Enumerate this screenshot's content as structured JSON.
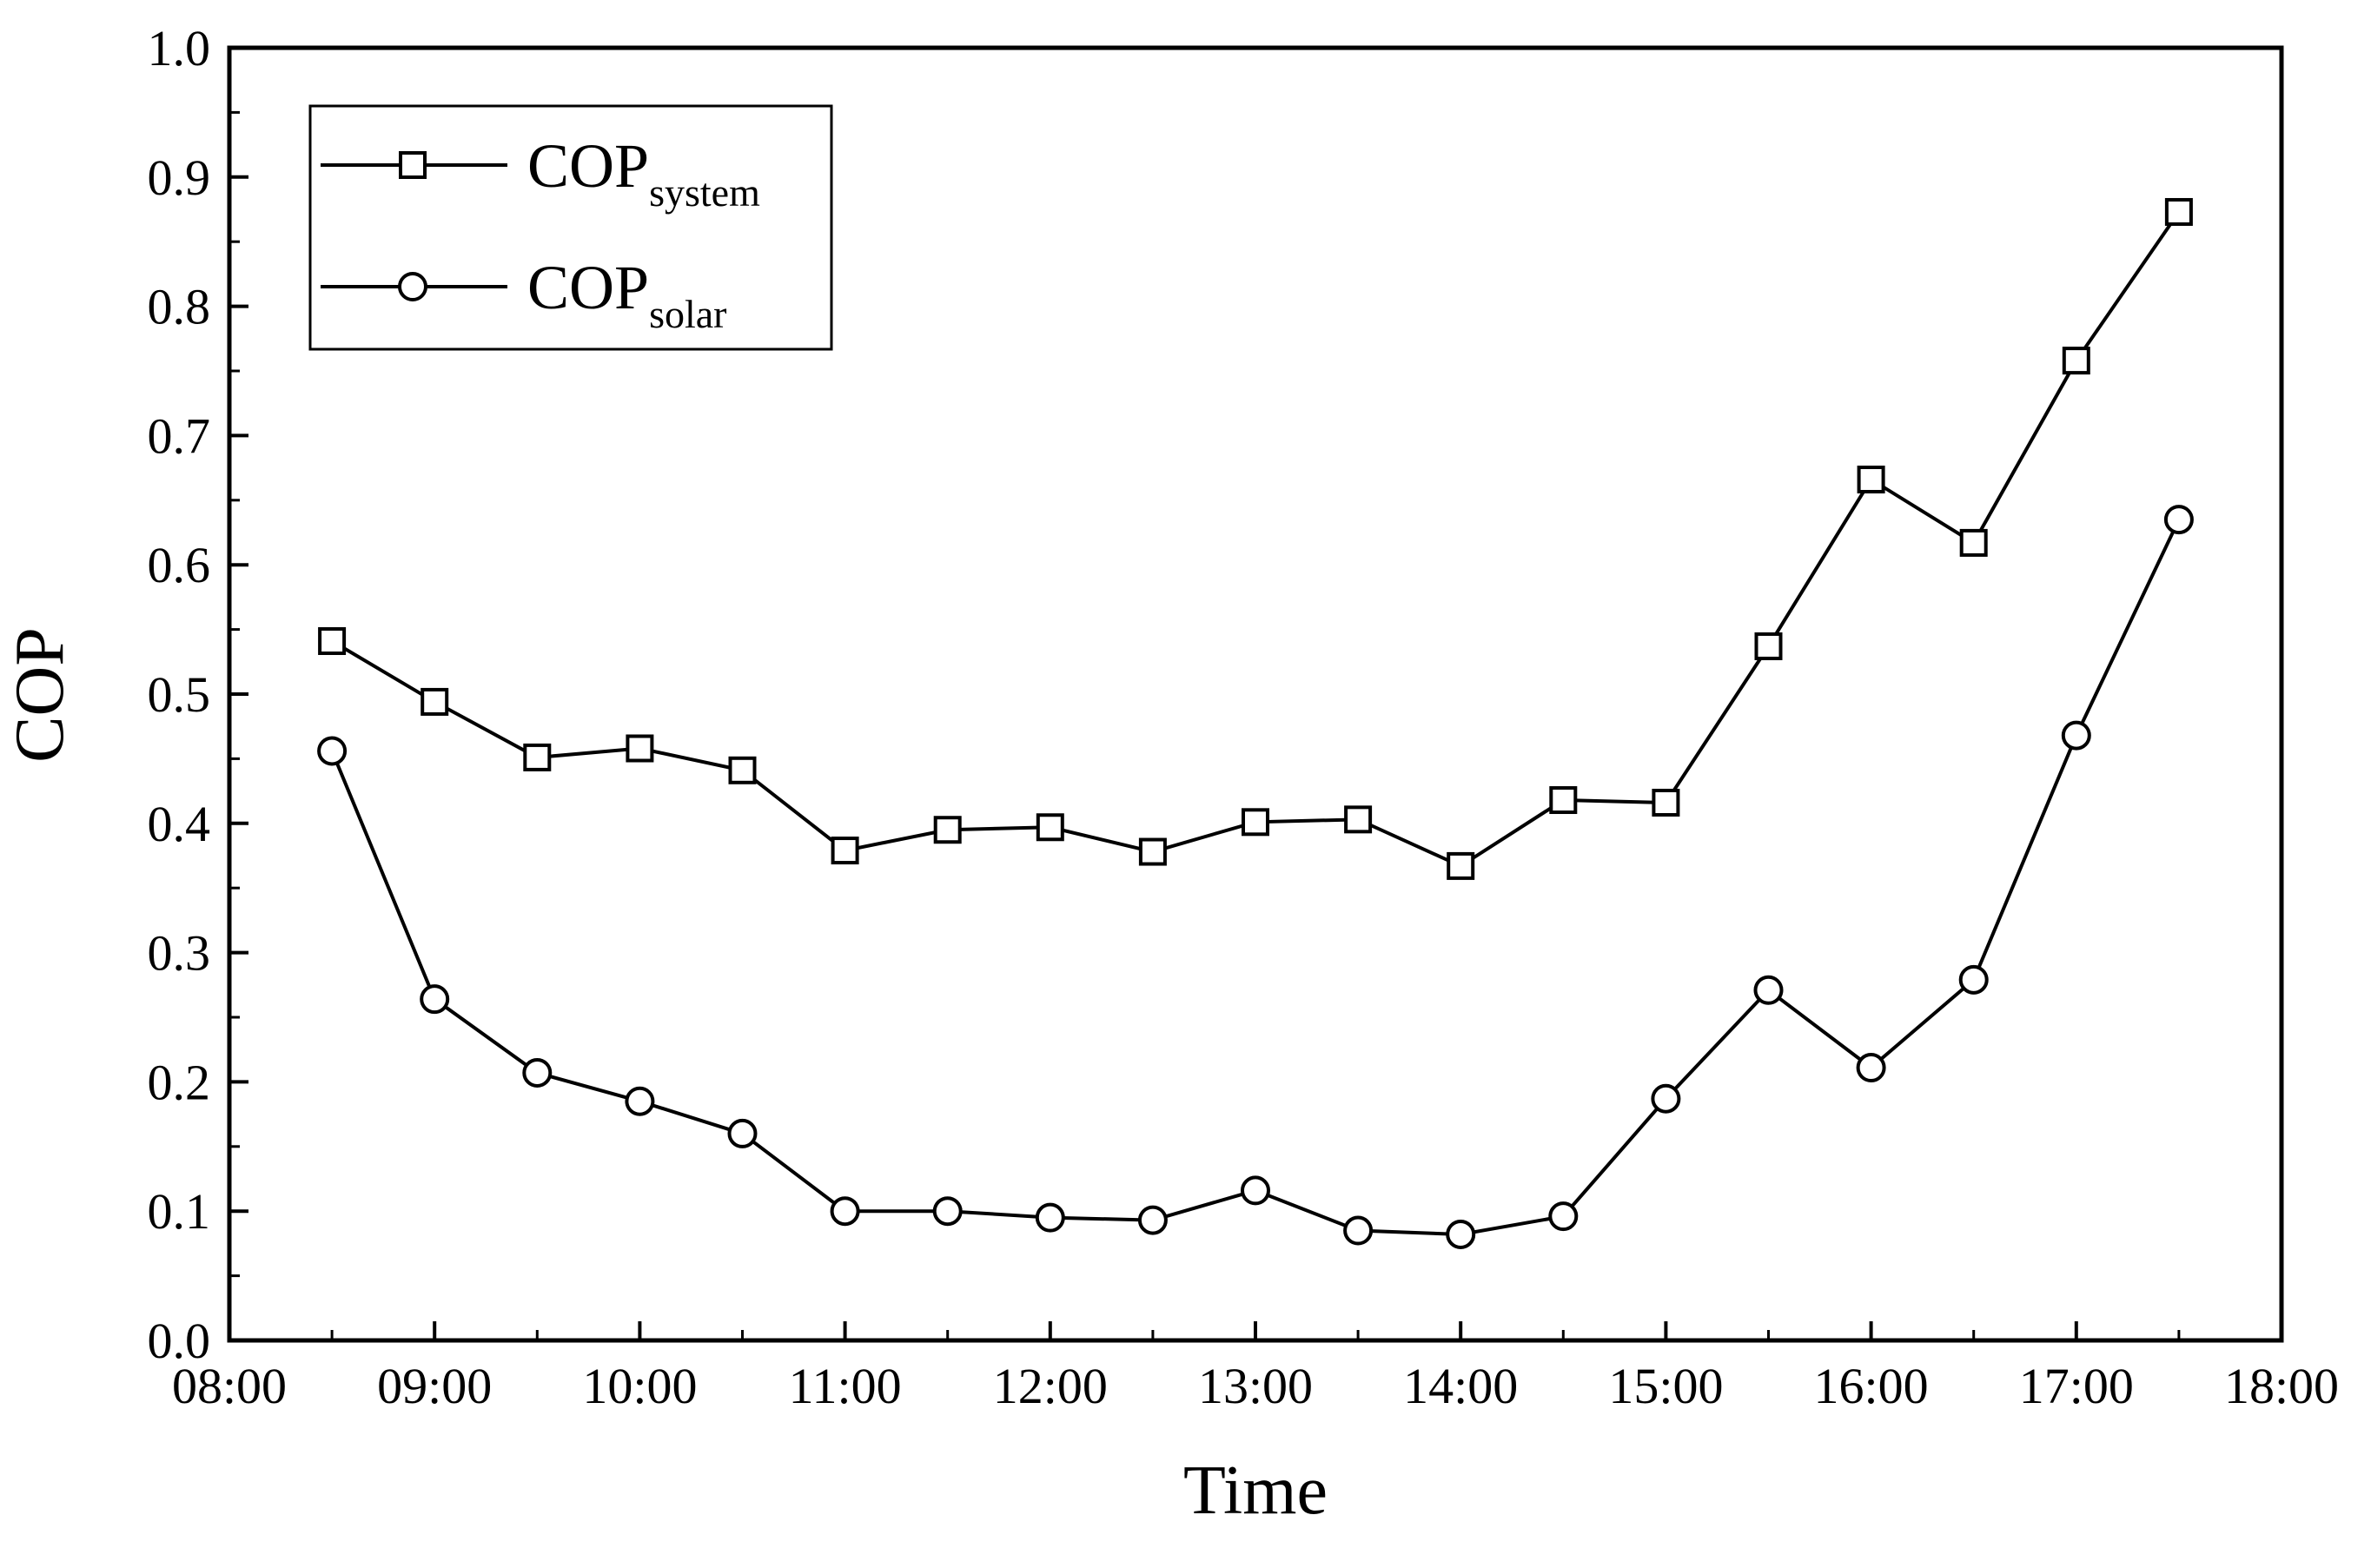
{
  "chart_data": {
    "type": "line",
    "title": "",
    "xlabel": "Time",
    "ylabel": "COP",
    "xlim": [
      8.0,
      18.0
    ],
    "ylim": [
      0.0,
      1.0
    ],
    "x_ticks": [
      8,
      9,
      10,
      11,
      12,
      13,
      14,
      15,
      16,
      17,
      18
    ],
    "x_tick_labels": [
      "08:00",
      "09:00",
      "10:00",
      "11:00",
      "12:00",
      "13:00",
      "14:00",
      "15:00",
      "16:00",
      "17:00",
      "18:00"
    ],
    "y_ticks": [
      0.0,
      0.1,
      0.2,
      0.3,
      0.4,
      0.5,
      0.6,
      0.7,
      0.8,
      0.9,
      1.0
    ],
    "y_tick_labels": [
      "0.0",
      "0.1",
      "0.2",
      "0.3",
      "0.4",
      "0.5",
      "0.6",
      "0.7",
      "0.8",
      "0.9",
      "1.0"
    ],
    "grid": false,
    "legend_position": "top-left",
    "x": [
      8.5,
      9.0,
      9.5,
      10.0,
      10.5,
      11.0,
      11.5,
      12.0,
      12.5,
      13.0,
      13.5,
      14.0,
      14.5,
      15.0,
      15.5,
      16.0,
      16.5,
      17.0,
      17.5
    ],
    "series": [
      {
        "name": "COP",
        "name_sub": "system",
        "marker": "square",
        "color": "#000000",
        "values": [
          0.541,
          0.494,
          0.451,
          0.458,
          0.441,
          0.379,
          0.395,
          0.397,
          0.378,
          0.401,
          0.403,
          0.367,
          0.418,
          0.416,
          0.537,
          0.666,
          0.617,
          0.758,
          0.873
        ]
      },
      {
        "name": "COP",
        "name_sub": "solar",
        "marker": "circle",
        "color": "#000000",
        "values": [
          0.456,
          0.264,
          0.207,
          0.185,
          0.16,
          0.1,
          0.1,
          0.095,
          0.093,
          0.116,
          0.085,
          0.082,
          0.096,
          0.187,
          0.271,
          0.211,
          0.279,
          0.468,
          0.635
        ]
      }
    ]
  }
}
